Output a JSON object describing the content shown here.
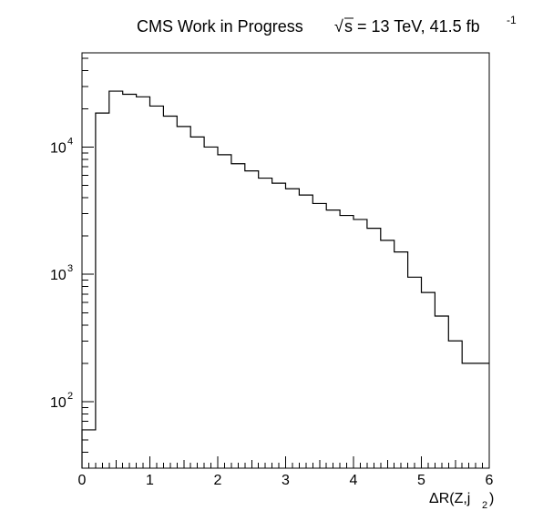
{
  "chart_data": {
    "type": "histogram",
    "title": {
      "experiment": "CMS Work in Progress",
      "sqrt_symbol": "√",
      "energy": "s = 13 TeV, 41.5 fb",
      "lumi_exponent": "-1"
    },
    "xlabel": {
      "main": "ΔR(Z,j",
      "subscript": "2",
      "close": ")"
    },
    "ylabel": "",
    "xlim": [
      0,
      6
    ],
    "ylim": [
      30,
      55000
    ],
    "log_y": true,
    "grid": false,
    "x_ticks": [
      {
        "value": 0,
        "label": "0"
      },
      {
        "value": 1,
        "label": "1"
      },
      {
        "value": 2,
        "label": "2"
      },
      {
        "value": 3,
        "label": "3"
      },
      {
        "value": 4,
        "label": "4"
      },
      {
        "value": 5,
        "label": "5"
      },
      {
        "value": 6,
        "label": "6"
      }
    ],
    "y_ticks": [
      {
        "value": 100,
        "base": "10",
        "exp": "2"
      },
      {
        "value": 1000,
        "base": "10",
        "exp": "3"
      },
      {
        "value": 10000,
        "base": "10",
        "exp": "4"
      }
    ],
    "bin_width": 0.2,
    "bin_edges_start": 0.0,
    "values": [
      60,
      18500,
      27500,
      26000,
      24800,
      21000,
      17500,
      14500,
      12000,
      10000,
      8700,
      7400,
      6500,
      5700,
      5200,
      4700,
      4200,
      3600,
      3200,
      2900,
      2700,
      2300,
      1850,
      1500,
      950,
      720,
      470,
      300,
      200,
      200
    ]
  }
}
